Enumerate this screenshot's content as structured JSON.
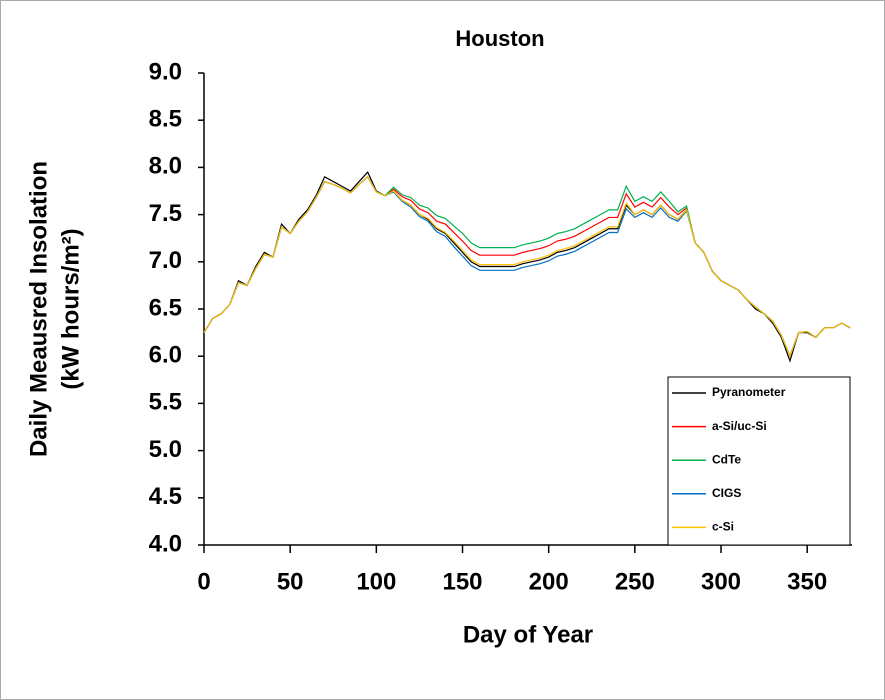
{
  "chart_data": {
    "type": "line",
    "title": "Houston",
    "x_label": "Day of Year",
    "y_label": [
      "Daily Meausred Insolation",
      "(kW hours/m²)"
    ],
    "x": [
      0,
      5,
      10,
      15,
      20,
      25,
      30,
      35,
      40,
      45,
      50,
      55,
      60,
      65,
      70,
      75,
      80,
      85,
      90,
      95,
      100,
      105,
      110,
      115,
      120,
      125,
      130,
      135,
      140,
      145,
      150,
      155,
      160,
      165,
      170,
      175,
      180,
      185,
      190,
      195,
      200,
      205,
      210,
      215,
      220,
      225,
      230,
      235,
      240,
      245,
      250,
      255,
      260,
      265,
      270,
      275,
      280,
      285,
      290,
      295,
      300,
      305,
      310,
      315,
      320,
      325,
      330,
      335,
      340,
      345,
      350,
      355,
      360,
      365,
      370,
      375
    ],
    "series": [
      {
        "name": "Pyranometer",
        "color": "#000000",
        "values": [
          6.25,
          6.4,
          6.45,
          6.55,
          6.8,
          6.75,
          6.95,
          7.1,
          7.05,
          7.4,
          7.3,
          7.45,
          7.55,
          7.7,
          7.9,
          7.85,
          7.8,
          7.75,
          7.85,
          7.95,
          7.75,
          7.7,
          7.75,
          7.65,
          7.6,
          7.5,
          7.45,
          7.35,
          7.3,
          7.2,
          7.1,
          7.0,
          6.95,
          6.95,
          6.95,
          6.95,
          6.95,
          6.98,
          7.0,
          7.02,
          7.05,
          7.1,
          7.12,
          7.15,
          7.2,
          7.25,
          7.3,
          7.35,
          7.35,
          7.6,
          7.5,
          7.55,
          7.5,
          7.6,
          7.5,
          7.45,
          7.55,
          7.2,
          7.1,
          6.9,
          6.8,
          6.75,
          6.7,
          6.6,
          6.5,
          6.45,
          6.35,
          6.2,
          5.95,
          6.25,
          6.25,
          6.2,
          6.3,
          6.3,
          6.35,
          6.3
        ]
      },
      {
        "name": "a-Si/uc-Si",
        "color": "#ff0000",
        "values": [
          6.25,
          6.4,
          6.45,
          6.55,
          6.78,
          6.75,
          6.93,
          7.08,
          7.05,
          7.37,
          7.3,
          7.43,
          7.53,
          7.68,
          7.85,
          7.82,
          7.78,
          7.73,
          7.82,
          7.9,
          7.74,
          7.7,
          7.77,
          7.69,
          7.65,
          7.56,
          7.52,
          7.43,
          7.4,
          7.31,
          7.22,
          7.12,
          7.07,
          7.07,
          7.07,
          7.07,
          7.07,
          7.1,
          7.12,
          7.14,
          7.17,
          7.22,
          7.24,
          7.27,
          7.32,
          7.37,
          7.42,
          7.47,
          7.47,
          7.72,
          7.58,
          7.63,
          7.58,
          7.68,
          7.58,
          7.5,
          7.57,
          7.2,
          7.1,
          6.9,
          6.8,
          6.75,
          6.7,
          6.6,
          6.52,
          6.45,
          6.37,
          6.22,
          6.0,
          6.25,
          6.26,
          6.2,
          6.3,
          6.3,
          6.35,
          6.3
        ]
      },
      {
        "name": "CdTe",
        "color": "#00b050",
        "values": [
          6.25,
          6.4,
          6.45,
          6.55,
          6.78,
          6.75,
          6.93,
          7.08,
          7.05,
          7.37,
          7.3,
          7.43,
          7.53,
          7.68,
          7.85,
          7.82,
          7.78,
          7.73,
          7.82,
          7.9,
          7.74,
          7.7,
          7.79,
          7.71,
          7.68,
          7.6,
          7.57,
          7.49,
          7.46,
          7.38,
          7.3,
          7.2,
          7.15,
          7.15,
          7.15,
          7.15,
          7.15,
          7.18,
          7.2,
          7.22,
          7.25,
          7.3,
          7.32,
          7.35,
          7.4,
          7.45,
          7.5,
          7.55,
          7.55,
          7.8,
          7.64,
          7.69,
          7.64,
          7.74,
          7.64,
          7.53,
          7.59,
          7.2,
          7.1,
          6.9,
          6.8,
          6.75,
          6.7,
          6.6,
          6.52,
          6.45,
          6.37,
          6.22,
          6.0,
          6.25,
          6.26,
          6.2,
          6.3,
          6.3,
          6.35,
          6.3
        ]
      },
      {
        "name": "CIGS",
        "color": "#0070c0",
        "values": [
          6.25,
          6.4,
          6.45,
          6.55,
          6.78,
          6.75,
          6.93,
          7.08,
          7.05,
          7.37,
          7.3,
          7.43,
          7.53,
          7.68,
          7.85,
          7.82,
          7.78,
          7.73,
          7.82,
          7.9,
          7.74,
          7.7,
          7.74,
          7.64,
          7.58,
          7.48,
          7.43,
          7.32,
          7.27,
          7.16,
          7.06,
          6.96,
          6.91,
          6.91,
          6.91,
          6.91,
          6.91,
          6.94,
          6.96,
          6.98,
          7.01,
          7.06,
          7.08,
          7.11,
          7.16,
          7.21,
          7.26,
          7.31,
          7.31,
          7.56,
          7.47,
          7.52,
          7.47,
          7.57,
          7.47,
          7.43,
          7.54,
          7.2,
          7.1,
          6.9,
          6.8,
          6.75,
          6.7,
          6.6,
          6.52,
          6.45,
          6.37,
          6.22,
          6.0,
          6.25,
          6.26,
          6.2,
          6.3,
          6.3,
          6.35,
          6.3
        ]
      },
      {
        "name": "c-Si",
        "color": "#ffc000",
        "values": [
          6.25,
          6.4,
          6.45,
          6.55,
          6.78,
          6.75,
          6.93,
          7.08,
          7.05,
          7.37,
          7.3,
          7.43,
          7.53,
          7.68,
          7.85,
          7.82,
          7.78,
          7.73,
          7.82,
          7.9,
          7.74,
          7.7,
          7.75,
          7.65,
          7.6,
          7.5,
          7.46,
          7.36,
          7.31,
          7.22,
          7.12,
          7.02,
          6.97,
          6.97,
          6.97,
          6.97,
          6.97,
          7.0,
          7.02,
          7.04,
          7.07,
          7.12,
          7.14,
          7.17,
          7.22,
          7.27,
          7.32,
          7.37,
          7.37,
          7.62,
          7.5,
          7.55,
          7.5,
          7.6,
          7.5,
          7.45,
          7.55,
          7.2,
          7.1,
          6.9,
          6.8,
          6.75,
          6.7,
          6.6,
          6.52,
          6.45,
          6.37,
          6.22,
          6.0,
          6.25,
          6.26,
          6.2,
          6.3,
          6.3,
          6.35,
          6.3
        ]
      }
    ],
    "xlim": [
      0,
      376
    ],
    "xticks": [
      0,
      50,
      100,
      150,
      200,
      250,
      300,
      350
    ],
    "ylim": [
      4,
      9
    ],
    "yticks": [
      {
        "value": 4,
        "label": "4.0"
      },
      4.5,
      {
        "value": 5,
        "label": "5.0"
      },
      5.5,
      {
        "value": 6,
        "label": "6.0"
      },
      6.5,
      {
        "value": 7,
        "label": "7.0"
      },
      7.5,
      {
        "value": 8,
        "label": "8.0"
      },
      8.5,
      {
        "value": 9,
        "label": "9.0"
      }
    ],
    "legend": "lower right"
  }
}
